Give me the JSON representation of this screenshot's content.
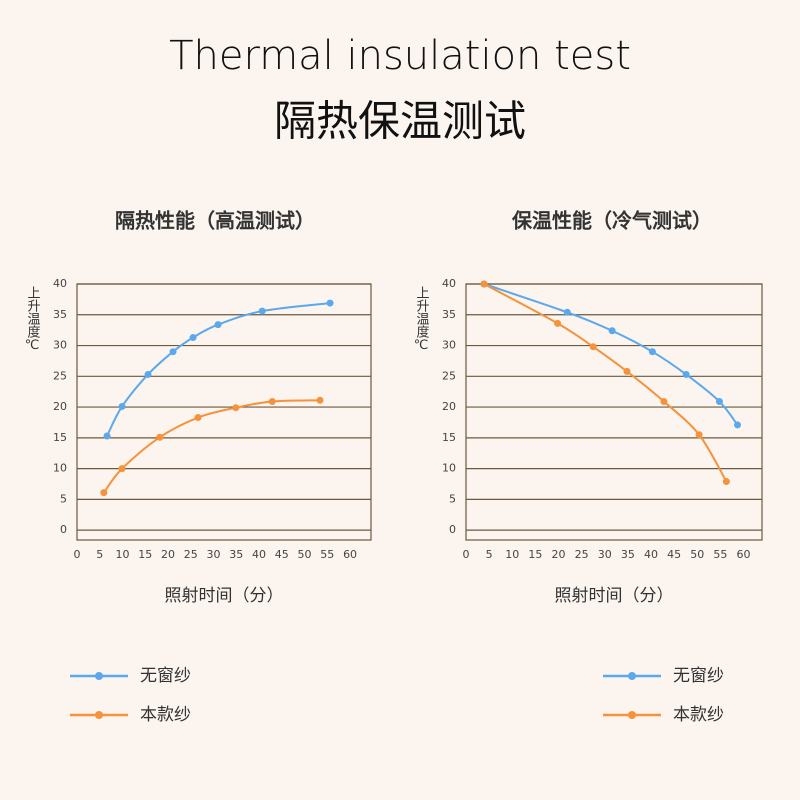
{
  "header": {
    "title": "Thermal insulation test",
    "subtitle": "隔热保温测试"
  },
  "chart_data": [
    {
      "type": "line",
      "title": "隔热性能（高温测试）",
      "x_label": "照射时间（分）",
      "y_label": "上升温度℃",
      "xlim": [
        0,
        64.6
      ],
      "ylim": [
        -1.6,
        40
      ],
      "xticks": [
        0,
        5,
        10,
        15,
        20,
        25,
        30,
        35,
        40,
        45,
        50,
        55,
        60
      ],
      "yticks": [
        0,
        5,
        10,
        15,
        20,
        25,
        30,
        35,
        40
      ],
      "grid": true,
      "series": [
        {
          "name": "无窗纱",
          "color": "#5ba8ec",
          "x": [
            6.6,
            9.9,
            15.6,
            21.1,
            25.5,
            31,
            40.7,
            55.6
          ],
          "values": [
            15.3,
            20.1,
            25.3,
            29,
            31.3,
            33.4,
            35.6,
            36.9
          ]
        },
        {
          "name": "本款纱",
          "color": "#f5923a",
          "x": [
            5.9,
            9.9,
            18.2,
            26.6,
            34.9,
            42.9,
            53.4
          ],
          "values": [
            6.1,
            10,
            15.1,
            18.3,
            19.9,
            20.9,
            21.1
          ]
        }
      ]
    },
    {
      "type": "line",
      "title": "保温性能（冷气测试）",
      "x_label": "照射时间（分）",
      "y_label": "上升温度℃",
      "xlim": [
        0,
        64
      ],
      "ylim": [
        -1.6,
        40
      ],
      "xticks": [
        0,
        5,
        10,
        15,
        20,
        25,
        30,
        35,
        40,
        45,
        50,
        55,
        60
      ],
      "yticks": [
        0,
        5,
        10,
        15,
        20,
        25,
        30,
        35,
        40
      ],
      "grid": true,
      "series": [
        {
          "name": "无窗纱",
          "color": "#5ba8ec",
          "x": [
            3.9,
            21.9,
            31.6,
            40.3,
            47.6,
            54.8,
            58.7
          ],
          "values": [
            40,
            35.4,
            32.4,
            29,
            25.3,
            20.9,
            17.1
          ]
        },
        {
          "name": "本款纱",
          "color": "#f5923a",
          "x": [
            3.9,
            19.8,
            27.5,
            34.8,
            42.8,
            50.4,
            56.3
          ],
          "values": [
            40,
            33.6,
            29.8,
            25.8,
            20.9,
            15.5,
            7.9
          ]
        }
      ]
    }
  ]
}
